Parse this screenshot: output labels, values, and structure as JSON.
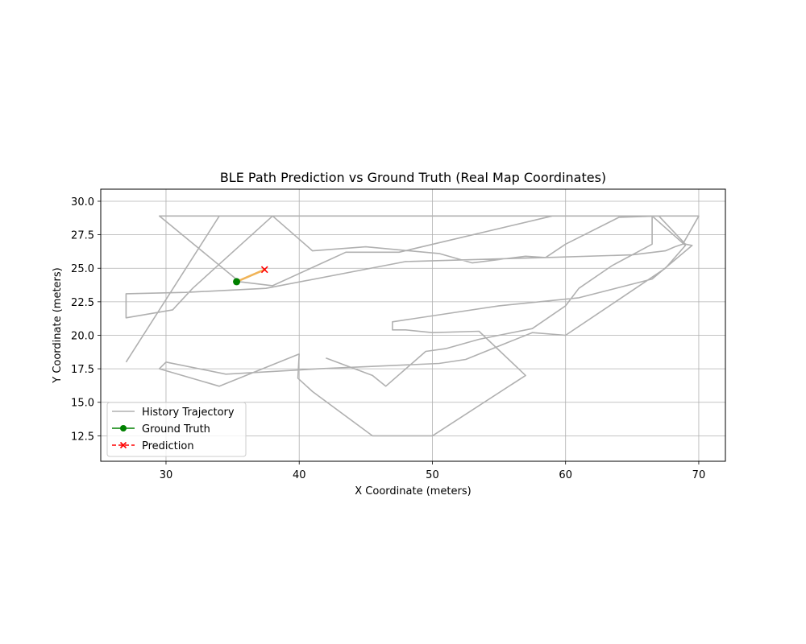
{
  "chart_data": {
    "type": "line",
    "title": "BLE Path Prediction vs Ground Truth (Real Map Coordinates)",
    "xlabel": "X Coordinate (meters)",
    "ylabel": "Y Coordinate (meters)",
    "xlim": [
      25.1,
      72.0
    ],
    "ylim": [
      10.6,
      30.9
    ],
    "xticks": [
      30,
      40,
      50,
      60,
      70
    ],
    "xtick_labels": [
      "30",
      "40",
      "50",
      "60",
      "70"
    ],
    "yticks": [
      12.5,
      15.0,
      17.5,
      20.0,
      22.5,
      25.0,
      27.5,
      30.0
    ],
    "ytick_labels": [
      "12.5",
      "15.0",
      "17.5",
      "20.0",
      "22.5",
      "25.0",
      "27.5",
      "30.0"
    ],
    "grid": true,
    "legend_position": "lower-left",
    "colors": {
      "history": "#b0b0b0",
      "ground_truth": "#008000",
      "prediction": "#ff0000",
      "error_segment": "#f0b458"
    },
    "series": [
      {
        "name": "History Trajectory",
        "style": "solid-line",
        "x": [
          42.0,
          45.5,
          46.5,
          49.5,
          51.0,
          53.5,
          57.5,
          60.0,
          61.0,
          63.5,
          66.5,
          66.5,
          64.0,
          60.0,
          57.5,
          55.5,
          49.0,
          47.0,
          45.5,
          44.0,
          40.5,
          38.5,
          33.0,
          29.5,
          35.5,
          38.0,
          43.5,
          47.5,
          59.0,
          70.0,
          68.8,
          68.2,
          67.5,
          65.0,
          58.5,
          48.0,
          37.5,
          31.5,
          27.0,
          27.0,
          30.5,
          32.0,
          38.0,
          41.0,
          45.0,
          50.5,
          53.0,
          57.0,
          58.5,
          60.0,
          64.0,
          67.0,
          69.0,
          69.5,
          66.5,
          61.0,
          55.0,
          47.0,
          47.0,
          48.0,
          50.0,
          53.5,
          57.0,
          50.0,
          49.0,
          48.5,
          45.5,
          41.0,
          39.9,
          40.0,
          34.0,
          29.5,
          30.0,
          34.5,
          41.5,
          50.5,
          52.5,
          57.5,
          60.0,
          63.0,
          67.5,
          69.0,
          66.5,
          65.5,
          64.5,
          63.0,
          61.0,
          54.5,
          47.5,
          38.0,
          34.0,
          27.0
        ],
        "y": [
          18.3,
          17.0,
          16.2,
          18.8,
          19.0,
          19.7,
          20.5,
          22.2,
          23.5,
          25.2,
          26.8,
          28.9,
          28.9,
          28.9,
          28.9,
          28.9,
          28.9,
          28.9,
          28.9,
          28.9,
          28.9,
          28.9,
          28.9,
          28.9,
          24.0,
          23.7,
          26.2,
          26.2,
          28.9,
          28.9,
          26.8,
          26.6,
          26.3,
          26.0,
          25.8,
          25.5,
          23.5,
          23.2,
          23.1,
          21.3,
          21.9,
          23.5,
          28.9,
          26.3,
          26.6,
          26.1,
          25.4,
          25.9,
          25.8,
          26.8,
          28.8,
          28.9,
          26.8,
          26.7,
          24.2,
          22.8,
          22.2,
          21.0,
          20.4,
          20.4,
          20.2,
          20.3,
          17.0,
          12.5,
          12.5,
          12.5,
          12.5,
          15.8,
          16.8,
          18.6,
          16.2,
          17.5,
          18.0,
          17.1,
          17.5,
          17.9,
          18.2,
          20.2,
          20.0,
          22.0,
          25.0,
          26.7,
          28.9,
          28.9,
          28.9,
          28.9,
          28.9,
          28.9,
          28.9,
          28.9,
          28.9,
          18.0
        ]
      },
      {
        "name": "Ground Truth",
        "style": "solid-line-circle-marker",
        "x": [
          35.3
        ],
        "y": [
          24.0
        ]
      },
      {
        "name": "Prediction",
        "style": "dashed-line-x-marker",
        "x": [
          37.4
        ],
        "y": [
          24.9
        ]
      }
    ],
    "error_segment": {
      "x": [
        35.3,
        37.4
      ],
      "y": [
        24.0,
        24.9
      ]
    }
  }
}
